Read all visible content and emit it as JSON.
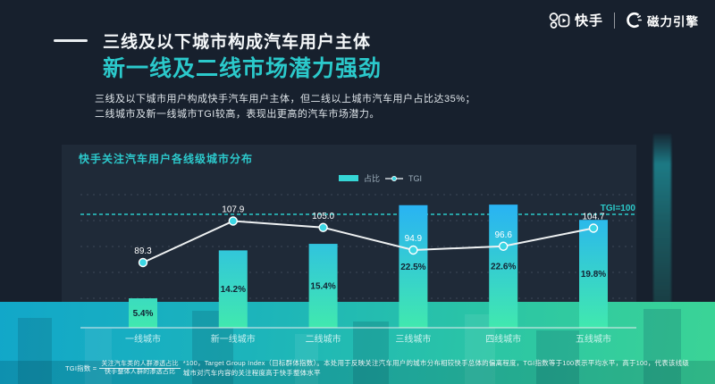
{
  "brand": {
    "kuaishou": "快手",
    "engine": "磁力引擎"
  },
  "header": {
    "title": "三线及以下城市构成汽车用户主体",
    "subtitle": "新一线及二线市场潜力强劲"
  },
  "intro": {
    "line1": "三线及以下城市用户构成快手汽车用户主体，但二线以上城市汽车用户占比达35%；",
    "line2": "二线城市及新一线城市TGI较高，表现出更高的汽车市场潜力。"
  },
  "chart": {
    "title": "快手关注汽车用户各线级城市分布",
    "legend": {
      "bar": "占比",
      "line": "TGI"
    },
    "ref_label": "TGI=100"
  },
  "chart_data": {
    "type": "bar",
    "title": "快手关注汽车用户各线级城市分布",
    "categories": [
      "一线城市",
      "新一线城市",
      "二线城市",
      "三线城市",
      "四线城市",
      "五线城市"
    ],
    "series": [
      {
        "name": "占比",
        "type": "bar",
        "unit": "%",
        "values": [
          5.4,
          14.2,
          15.4,
          22.5,
          22.6,
          19.8
        ]
      },
      {
        "name": "TGI",
        "type": "line",
        "values": [
          89.3,
          107.9,
          105.0,
          94.9,
          96.6,
          104.7
        ]
      }
    ],
    "reference_line": {
      "label": "TGI=100",
      "value": 100
    },
    "legend_position": "top-center",
    "grid": true,
    "value_labels": true
  },
  "footnote": {
    "prefix": "TGI指数 =",
    "numerator": "关注汽车类的人群渗透占比",
    "denominator": "快手整体人群的渗透占比",
    "suffix": "*100，Target Group Index（目标群体指数）。本处用于反映关注汽车用户的城市分布相较快手总体的偏离程度，TGI指数等于100表示平均水平，高于100，代表该线级城市对汽车内容的关注程度高于快手整体水平"
  },
  "colors": {
    "background": "#17202d",
    "panel": "#1f2a38",
    "accent_teal": "#2bc9cb",
    "bar_top": "#29b2f4",
    "bar_bottom": "#41e9ae",
    "line": "#eef1f2",
    "marker": "#3bd6e3",
    "band_left": "#12a7c9",
    "band_right": "#3bd496"
  }
}
